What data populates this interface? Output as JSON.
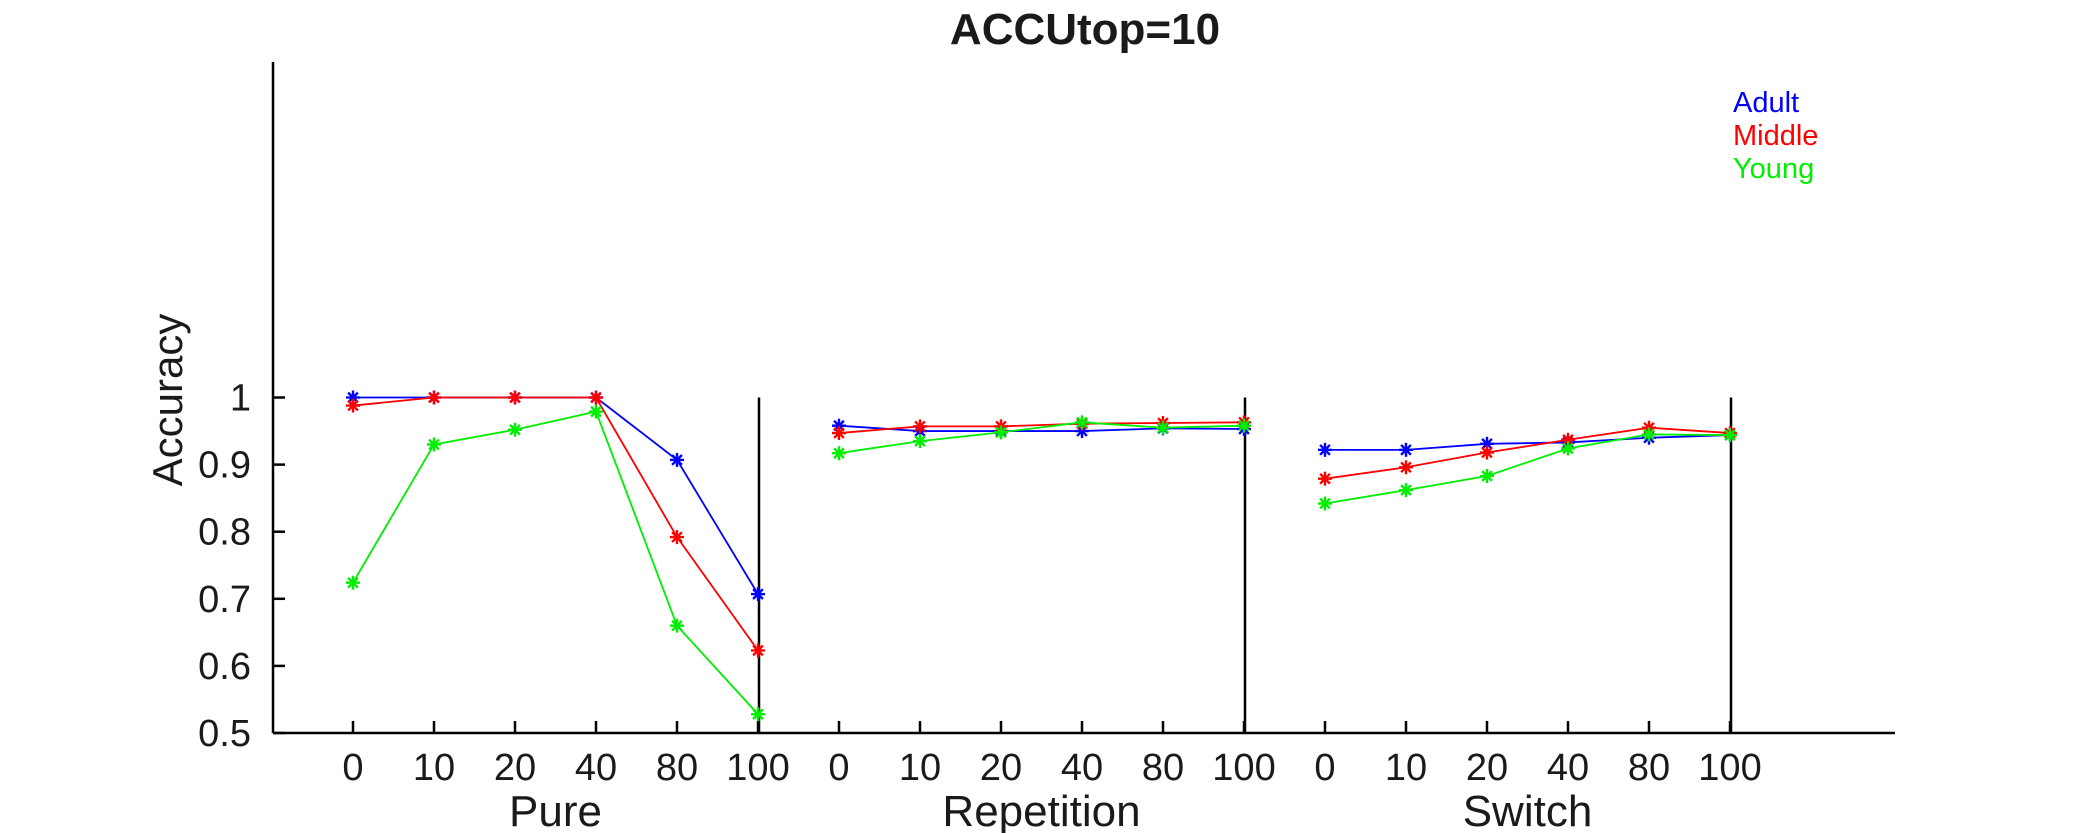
{
  "chart_data": {
    "type": "line",
    "title": "ACCUtop=10",
    "ylabel": "Accuracy",
    "ylim": [
      0.5,
      1.5
    ],
    "yticks": [
      "0.5",
      "0.6",
      "0.7",
      "0.8",
      "0.9",
      "1"
    ],
    "grid": false,
    "legend_position": "top-right",
    "groups": [
      {
        "name": "Pure",
        "categories": [
          "0",
          "10",
          "20",
          "40",
          "80",
          "100"
        ]
      },
      {
        "name": "Repetition",
        "categories": [
          "0",
          "10",
          "20",
          "40",
          "80",
          "100"
        ]
      },
      {
        "name": "Switch",
        "categories": [
          "0",
          "10",
          "20",
          "40",
          "80",
          "100"
        ]
      }
    ],
    "series": [
      {
        "name": "Adult",
        "color": "#0000ff",
        "values": [
          [
            1.0,
            1.0,
            1.0,
            1.0,
            0.907,
            0.707
          ],
          [
            0.958,
            0.95,
            0.95,
            0.95,
            0.954,
            0.953
          ],
          [
            0.922,
            0.922,
            0.931,
            0.933,
            0.94,
            0.944
          ]
        ]
      },
      {
        "name": "Middle",
        "color": "#ff0000",
        "values": [
          [
            0.988,
            1.0,
            1.0,
            1.0,
            0.792,
            0.623
          ],
          [
            0.947,
            0.957,
            0.957,
            0.961,
            0.962,
            0.963
          ],
          [
            0.879,
            0.896,
            0.918,
            0.937,
            0.955,
            0.947
          ]
        ]
      },
      {
        "name": "Young",
        "color": "#00ee00",
        "values": [
          [
            0.724,
            0.93,
            0.952,
            0.979,
            0.66,
            0.528
          ],
          [
            0.917,
            0.935,
            0.948,
            0.963,
            0.955,
            0.958
          ],
          [
            0.842,
            0.862,
            0.883,
            0.924,
            0.945,
            0.944
          ]
        ]
      }
    ]
  }
}
